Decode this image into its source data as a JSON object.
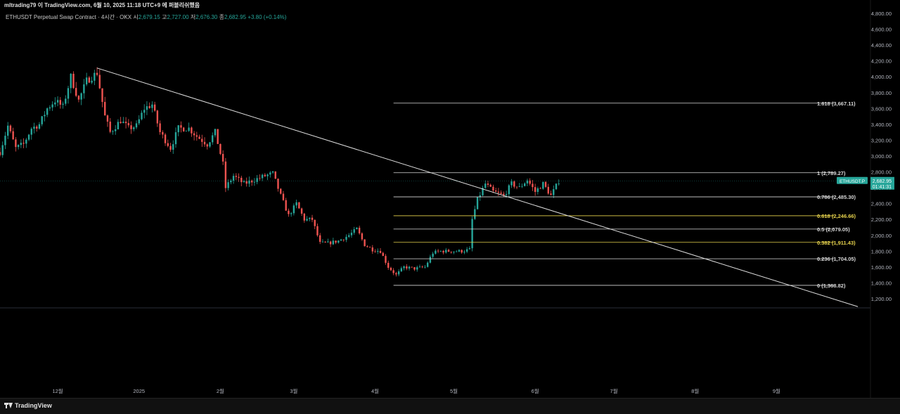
{
  "header": {
    "publisher_line": "mltrading79 이 TradingView.com, 6월 10, 2025 11:18 UTC+9 에 퍼블리쉬했음"
  },
  "legend": {
    "symbol": "ETHUSDT Perpetual Swap Contract · 4시간 · OKX",
    "o_label": "시",
    "o_value": "2,679.15",
    "h_label": "고",
    "h_value": "2,727.00",
    "l_label": "저",
    "l_value": "2,676.30",
    "c_label": "종",
    "c_value": "2,682.95",
    "change": "+3.80 (+0.14%)"
  },
  "colors": {
    "background": "#000000",
    "up": "#26a69a",
    "down": "#ef5350",
    "fib_line": "#d8d8d8",
    "fib_golden": "#e8d44d",
    "trendline": "#e0e0e0",
    "price_tag": "#26a69a"
  },
  "price_tag": {
    "symbol": "ETHUSDT.P",
    "price": "2,682.95",
    "countdown": "01:41:31"
  },
  "footer": {
    "brand": "TradingView",
    "logo_icon": "tradingview-logo-icon"
  },
  "chart_data": {
    "type": "candlestick",
    "title": "",
    "ylim": [
      1000,
      4800
    ],
    "y_ticks": [
      {
        "value": 1200,
        "label": "1,200.00"
      },
      {
        "value": 1400,
        "label": "1,400.00"
      },
      {
        "value": 1600,
        "label": "1,600.00"
      },
      {
        "value": 1800,
        "label": "1,800.00"
      },
      {
        "value": 2000,
        "label": "2,000.00"
      },
      {
        "value": 2200,
        "label": "2,200.00"
      },
      {
        "value": 2400,
        "label": "2,400.00"
      },
      {
        "value": 2600,
        "label": "2,600.00"
      },
      {
        "value": 2800,
        "label": "2,800.00"
      },
      {
        "value": 3000,
        "label": "3,000.00"
      },
      {
        "value": 3200,
        "label": "3,200.00"
      },
      {
        "value": 3400,
        "label": "3,400.00"
      },
      {
        "value": 3600,
        "label": "3,600.00"
      },
      {
        "value": 3800,
        "label": "3,800.00"
      },
      {
        "value": 4000,
        "label": "4,000.00"
      },
      {
        "value": 4200,
        "label": "4,200.00"
      },
      {
        "value": 4400,
        "label": "4,400.00"
      },
      {
        "value": 4600,
        "label": "4,600.00"
      },
      {
        "value": 4800,
        "label": "4,800.00"
      }
    ],
    "x_ticks": [
      {
        "date": "2024-12-01",
        "label": "12월"
      },
      {
        "date": "2025-01-01",
        "label": "2025"
      },
      {
        "date": "2025-02-01",
        "label": "2월"
      },
      {
        "date": "2025-03-01",
        "label": "3월"
      },
      {
        "date": "2025-04-01",
        "label": "4월"
      },
      {
        "date": "2025-05-01",
        "label": "5월"
      },
      {
        "date": "2025-06-01",
        "label": "6월"
      },
      {
        "date": "2025-07-01",
        "label": "7월"
      },
      {
        "date": "2025-08-01",
        "label": "8월"
      },
      {
        "date": "2025-09-01",
        "label": "9월"
      }
    ],
    "xlim": [
      "2024-11-09",
      "2025-10-06"
    ],
    "price_path": [
      {
        "date": "2024-11-09",
        "price": 3050
      },
      {
        "date": "2024-11-12",
        "price": 3380
      },
      {
        "date": "2024-11-15",
        "price": 3100
      },
      {
        "date": "2024-11-18",
        "price": 3150
      },
      {
        "date": "2024-11-21",
        "price": 3350
      },
      {
        "date": "2024-11-24",
        "price": 3400
      },
      {
        "date": "2024-11-27",
        "price": 3600
      },
      {
        "date": "2024-11-30",
        "price": 3700
      },
      {
        "date": "2024-12-03",
        "price": 3620
      },
      {
        "date": "2024-12-06",
        "price": 4000
      },
      {
        "date": "2024-12-09",
        "price": 3700
      },
      {
        "date": "2024-12-12",
        "price": 3950
      },
      {
        "date": "2024-12-16",
        "price": 4050
      },
      {
        "date": "2024-12-19",
        "price": 3500
      },
      {
        "date": "2024-12-21",
        "price": 3300
      },
      {
        "date": "2024-12-25",
        "price": 3450
      },
      {
        "date": "2024-12-28",
        "price": 3350
      },
      {
        "date": "2024-12-31",
        "price": 3380
      },
      {
        "date": "2025-01-03",
        "price": 3600
      },
      {
        "date": "2025-01-06",
        "price": 3650
      },
      {
        "date": "2025-01-09",
        "price": 3300
      },
      {
        "date": "2025-01-13",
        "price": 3100
      },
      {
        "date": "2025-01-16",
        "price": 3350
      },
      {
        "date": "2025-01-20",
        "price": 3350
      },
      {
        "date": "2025-01-23",
        "price": 3250
      },
      {
        "date": "2025-01-27",
        "price": 3150
      },
      {
        "date": "2025-01-30",
        "price": 3300
      },
      {
        "date": "2025-02-02",
        "price": 2900
      },
      {
        "date": "2025-02-03",
        "price": 2600
      },
      {
        "date": "2025-02-06",
        "price": 2750
      },
      {
        "date": "2025-02-10",
        "price": 2650
      },
      {
        "date": "2025-02-14",
        "price": 2700
      },
      {
        "date": "2025-02-18",
        "price": 2750
      },
      {
        "date": "2025-02-21",
        "price": 2780
      },
      {
        "date": "2025-02-24",
        "price": 2500
      },
      {
        "date": "2025-02-27",
        "price": 2250
      },
      {
        "date": "2025-03-02",
        "price": 2400
      },
      {
        "date": "2025-03-05",
        "price": 2200
      },
      {
        "date": "2025-03-08",
        "price": 2200
      },
      {
        "date": "2025-03-11",
        "price": 1900
      },
      {
        "date": "2025-03-14",
        "price": 1900
      },
      {
        "date": "2025-03-18",
        "price": 1930
      },
      {
        "date": "2025-03-22",
        "price": 2000
      },
      {
        "date": "2025-03-25",
        "price": 2080
      },
      {
        "date": "2025-03-28",
        "price": 1880
      },
      {
        "date": "2025-03-31",
        "price": 1820
      },
      {
        "date": "2025-04-03",
        "price": 1800
      },
      {
        "date": "2025-04-06",
        "price": 1600
      },
      {
        "date": "2025-04-09",
        "price": 1500
      },
      {
        "date": "2025-04-12",
        "price": 1600
      },
      {
        "date": "2025-04-16",
        "price": 1580
      },
      {
        "date": "2025-04-20",
        "price": 1600
      },
      {
        "date": "2025-04-23",
        "price": 1780
      },
      {
        "date": "2025-04-26",
        "price": 1800
      },
      {
        "date": "2025-04-30",
        "price": 1800
      },
      {
        "date": "2025-05-04",
        "price": 1800
      },
      {
        "date": "2025-05-07",
        "price": 1820
      },
      {
        "date": "2025-05-08",
        "price": 2200
      },
      {
        "date": "2025-05-10",
        "price": 2450
      },
      {
        "date": "2025-05-13",
        "price": 2650
      },
      {
        "date": "2025-05-16",
        "price": 2550
      },
      {
        "date": "2025-05-20",
        "price": 2500
      },
      {
        "date": "2025-05-23",
        "price": 2650
      },
      {
        "date": "2025-05-26",
        "price": 2600
      },
      {
        "date": "2025-05-29",
        "price": 2700
      },
      {
        "date": "2025-06-01",
        "price": 2550
      },
      {
        "date": "2025-06-04",
        "price": 2650
      },
      {
        "date": "2025-06-07",
        "price": 2500
      },
      {
        "date": "2025-06-10",
        "price": 2683
      }
    ],
    "trendline": {
      "start": {
        "date": "2024-12-16",
        "price": 4110
      },
      "end": {
        "date": "2025-10-02",
        "price": 1100
      }
    },
    "fib_levels": [
      {
        "ratio": "1.618",
        "price": 3667.11,
        "label": "1.618 (3,667.11)",
        "golden": false
      },
      {
        "ratio": "1",
        "price": 2789.27,
        "label": "1 (2,789.27)",
        "golden": false
      },
      {
        "ratio": "0.786",
        "price": 2485.3,
        "label": "0.786 (2,485.30)",
        "golden": false
      },
      {
        "ratio": "0.618",
        "price": 2246.66,
        "label": "0.618 (2,246.66)",
        "golden": true
      },
      {
        "ratio": "0.5",
        "price": 2079.05,
        "label": "0.5 (2,079.05)",
        "golden": false
      },
      {
        "ratio": "0.382",
        "price": 1911.43,
        "label": "0.382 (1,911.43)",
        "golden": true
      },
      {
        "ratio": "0.236",
        "price": 1704.05,
        "label": "0.236 (1,704.05)",
        "golden": false
      },
      {
        "ratio": "0",
        "price": 1368.82,
        "label": "0 (1,368.82)",
        "golden": false
      }
    ],
    "fib_start_date": "2025-04-08",
    "last_price": 2682.95,
    "grid": false,
    "legend": "top-left"
  }
}
